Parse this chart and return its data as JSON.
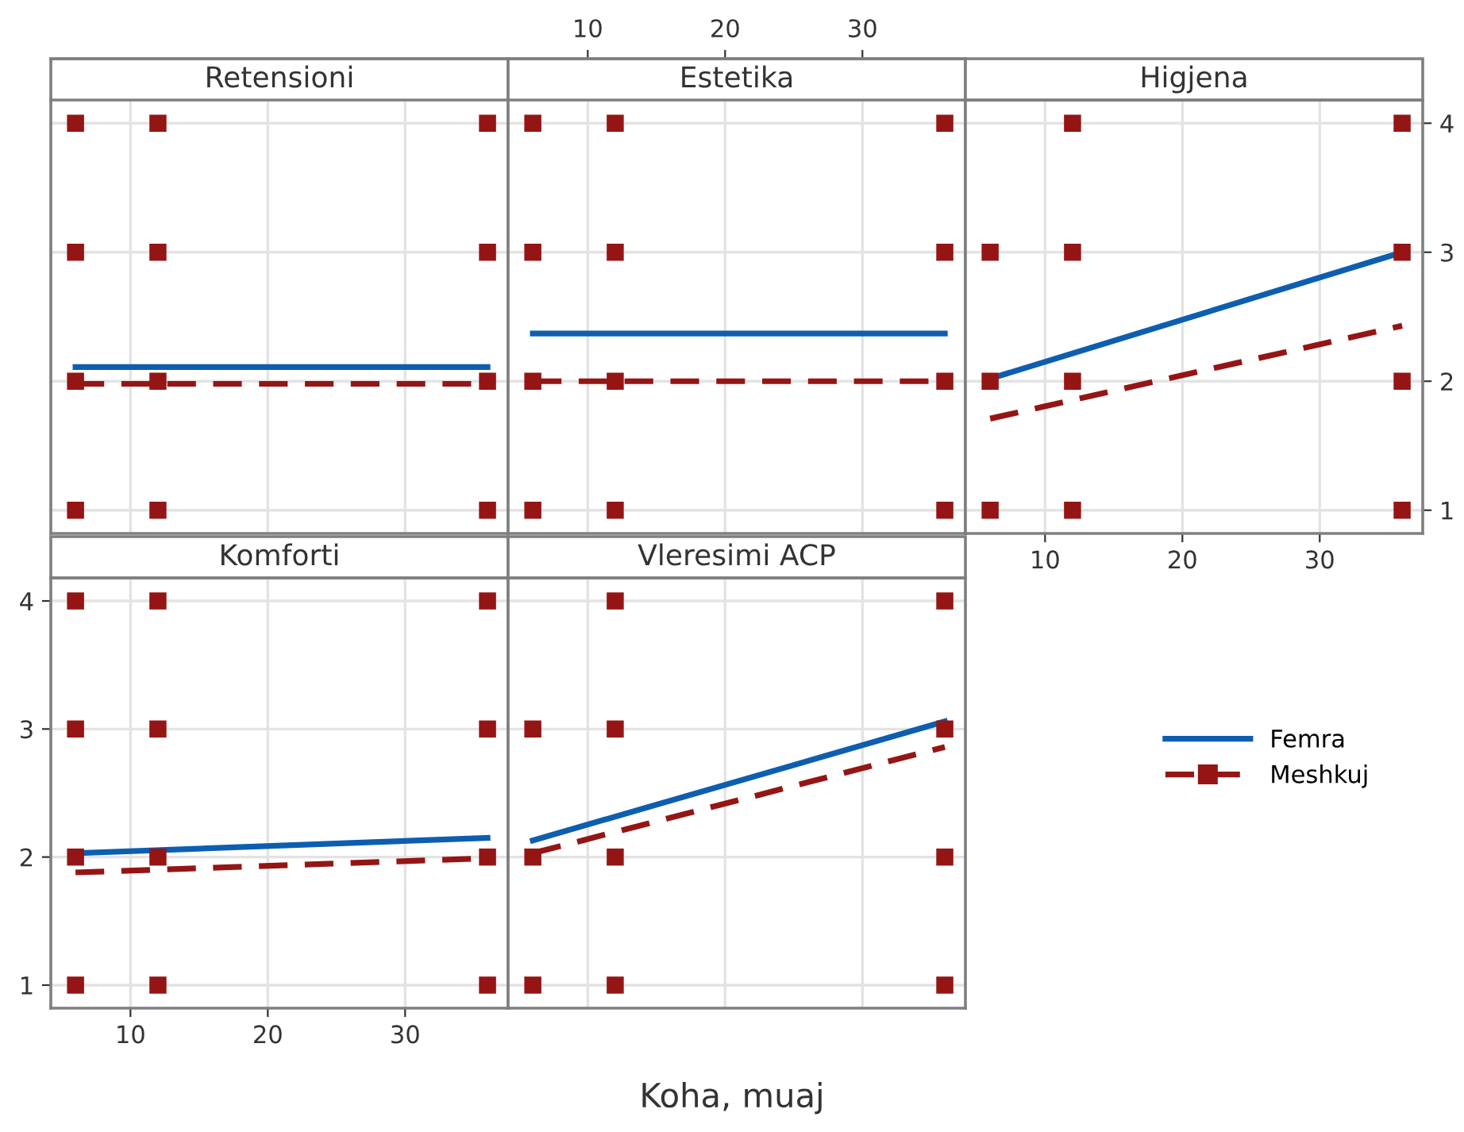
{
  "chart_data": [
    {
      "type": "line",
      "title": "Retensioni",
      "xlim": [
        4.2,
        37.5
      ],
      "xticks": [
        10,
        20,
        30
      ],
      "ylim": [
        0.82,
        4.18
      ],
      "yticks": [
        1,
        2,
        3,
        4
      ],
      "tick_labels": false,
      "grid": true,
      "series": [
        {
          "type": "line",
          "color": "#0e5eb0",
          "line_style": "solid",
          "x": [
            6,
            36
          ],
          "values": [
            2.11,
            2.11
          ]
        },
        {
          "type": "line",
          "color": "#951515",
          "line_style": "dashed",
          "x": [
            6,
            36
          ],
          "values": [
            1.98,
            1.98
          ]
        },
        {
          "type": "scatter",
          "color": "#951515",
          "marker": "square",
          "x": [
            6,
            6,
            6,
            6,
            12,
            12,
            12,
            12,
            36,
            36,
            36,
            36
          ],
          "values": [
            4,
            3,
            2,
            1,
            4,
            3,
            2,
            1,
            4,
            3,
            2,
            1
          ]
        }
      ]
    },
    {
      "type": "line",
      "title": "Estetika",
      "xlim": [
        4.2,
        37.5
      ],
      "xticks": [
        10,
        20,
        30
      ],
      "ylim": [
        0.82,
        4.18
      ],
      "yticks": [
        1,
        2,
        3,
        4
      ],
      "tick_labels": "x",
      "grid": true,
      "series": [
        {
          "type": "line",
          "color": "#0e5eb0",
          "line_style": "solid",
          "x": [
            6,
            36
          ],
          "values": [
            2.37,
            2.37
          ]
        },
        {
          "type": "line",
          "color": "#951515",
          "line_style": "dashed",
          "x": [
            6,
            36
          ],
          "values": [
            2.0,
            2.0
          ]
        },
        {
          "type": "scatter",
          "color": "#951515",
          "marker": "square",
          "x": [
            6,
            6,
            6,
            6,
            12,
            12,
            12,
            12,
            36,
            36,
            36,
            36
          ],
          "values": [
            4,
            3,
            2,
            1,
            4,
            3,
            2,
            1,
            4,
            3,
            2,
            1
          ]
        }
      ]
    },
    {
      "type": "line",
      "title": "Higjena",
      "xlim": [
        4.2,
        37.5
      ],
      "xticks": [
        10,
        20,
        30
      ],
      "ylim": [
        0.82,
        4.18
      ],
      "yticks": [
        1,
        2,
        3,
        4
      ],
      "grid": true,
      "series": [
        {
          "type": "line",
          "color": "#0e5eb0",
          "line_style": "solid",
          "x": [
            6,
            36
          ],
          "values": [
            2.02,
            3.0
          ]
        },
        {
          "type": "line",
          "color": "#951515",
          "line_style": "dashed",
          "x": [
            6,
            36
          ],
          "values": [
            1.71,
            2.43
          ]
        },
        {
          "type": "scatter",
          "color": "#951515",
          "marker": "square",
          "x": [
            6,
            6,
            6,
            12,
            12,
            12,
            12,
            36,
            36,
            36,
            36
          ],
          "values": [
            3,
            2,
            1,
            4,
            3,
            2,
            1,
            4,
            3,
            2,
            1
          ]
        }
      ]
    },
    {
      "type": "line",
      "title": "Komforti",
      "xlim": [
        4.2,
        37.5
      ],
      "xticks": [
        10,
        20,
        30
      ],
      "ylim": [
        0.82,
        4.18
      ],
      "yticks": [
        1,
        2,
        3,
        4
      ],
      "grid": true,
      "series": [
        {
          "type": "line",
          "color": "#0e5eb0",
          "line_style": "solid",
          "x": [
            6,
            36
          ],
          "values": [
            2.03,
            2.15
          ]
        },
        {
          "type": "line",
          "color": "#951515",
          "line_style": "dashed",
          "x": [
            6,
            36
          ],
          "values": [
            1.88,
            1.99
          ]
        },
        {
          "type": "scatter",
          "color": "#951515",
          "marker": "square",
          "x": [
            6,
            6,
            6,
            6,
            12,
            12,
            12,
            12,
            36,
            36,
            36,
            36
          ],
          "values": [
            4,
            3,
            2,
            1,
            4,
            3,
            2,
            1,
            4,
            3,
            2,
            1
          ]
        }
      ]
    },
    {
      "type": "line",
      "title": "Vleresimi ACP",
      "xlabel": "Koha, muaj",
      "legend": "right",
      "xlim": [
        4.2,
        37.5
      ],
      "xticks": [
        10,
        20,
        30
      ],
      "ylim": [
        0.82,
        4.18
      ],
      "yticks": [
        1,
        2,
        3,
        4
      ],
      "tick_labels": false,
      "grid": true,
      "series": [
        {
          "name": "Femra",
          "type": "line",
          "color": "#0e5eb0",
          "line_style": "solid",
          "x": [
            6,
            36
          ],
          "values": [
            2.13,
            3.06
          ]
        },
        {
          "name": "Meshkuj",
          "type": "line",
          "color": "#951515",
          "line_style": "dashed",
          "x": [
            6,
            36
          ],
          "values": [
            2.03,
            2.86
          ]
        },
        {
          "type": "scatter",
          "color": "#951515",
          "marker": "square",
          "x": [
            6,
            6,
            6,
            12,
            12,
            12,
            12,
            36,
            36,
            36,
            36
          ],
          "values": [
            3,
            2,
            1,
            4,
            3,
            2,
            1,
            4,
            3,
            2,
            1
          ]
        }
      ]
    }
  ]
}
